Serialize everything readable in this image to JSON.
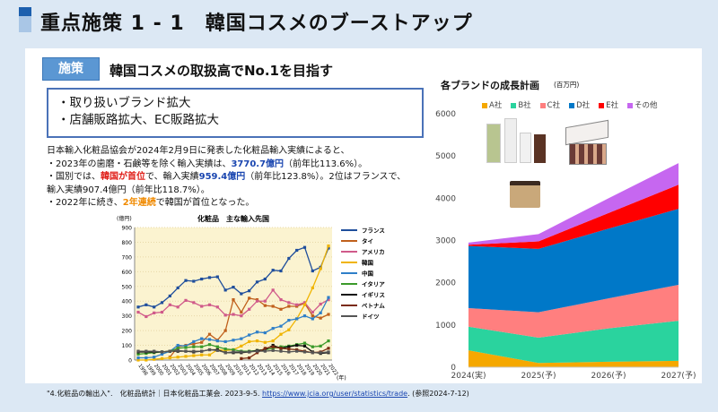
{
  "header": {
    "title": "重点施策 1 - 1　韓国コスメのブーストアップ"
  },
  "policy": {
    "badge": "施策",
    "headline": "韓国コスメの取扱高でNo.1を目指す",
    "bullets": [
      "・取り扱いブランド拡大",
      "・店舗販路拡大、EC販路拡大"
    ]
  },
  "paragraph": {
    "l1": "日本輸入化粧品協会が2024年2月9日に発表した化粧品輸入実績によると、",
    "l2a": "・2023年の歯磨・石鹸等を除く輸入実績は、",
    "l2b": "3770.7億円",
    "l2c": "（前年比113.6%）。",
    "l3a": "・国別では、",
    "l3b": "韓国が首位",
    "l3c": "で、輸入実績",
    "l3d": "959.4億円",
    "l3e": "（前年比123.8%）。2位はフランスで、",
    "l4": "輸入実績907.4億円（前年比118.7%）。",
    "l5a": "・2022年に続き、",
    "l5b": "2年連続",
    "l5c": "で韓国が首位となった。"
  },
  "footer": {
    "text": "\"4.化粧品の輸出入\".　化粧品統計｜日本化粧品工業会. 2023-9-5. ",
    "link": "https://www.jcia.org/user/statistics/trade",
    "after": ". (参照2024-7-12)"
  },
  "chart_data": [
    {
      "type": "line",
      "title": "化粧品　主な輸入先国",
      "ylabel": "(億円)",
      "xlabel": "(年)",
      "ylim": [
        0,
        900
      ],
      "yticks": [
        0,
        100,
        200,
        300,
        400,
        500,
        600,
        700,
        800,
        900
      ],
      "x": [
        "1998",
        "1999",
        "2000",
        "2001",
        "2002",
        "2003",
        "2004",
        "2005",
        "2006",
        "2007",
        "2008",
        "2009",
        "2010",
        "2011",
        "2012",
        "2013",
        "2014",
        "2015",
        "2016",
        "2017",
        "2018",
        "2019",
        "2020",
        "2021",
        "2022"
      ],
      "series": [
        {
          "name": "フランス",
          "color": "#1f4e9c",
          "values": [
            360,
            375,
            360,
            390,
            435,
            490,
            540,
            535,
            550,
            560,
            565,
            475,
            495,
            450,
            470,
            530,
            550,
            610,
            605,
            690,
            745,
            765,
            605,
            630,
            760
          ]
        },
        {
          "name": "タイ",
          "color": "#c0601c",
          "values": [
            null,
            null,
            null,
            null,
            20,
            90,
            100,
            110,
            120,
            175,
            135,
            200,
            410,
            325,
            420,
            410,
            370,
            365,
            345,
            365,
            365,
            385,
            300,
            285,
            310
          ]
        },
        {
          "name": "アメリカ",
          "color": "#d05a8a",
          "values": [
            325,
            295,
            320,
            325,
            375,
            360,
            405,
            390,
            365,
            375,
            360,
            305,
            310,
            300,
            345,
            400,
            400,
            475,
            410,
            390,
            375,
            390,
            325,
            380,
            410
          ]
        },
        {
          "name": "韓国",
          "color": "#f0b400",
          "values": [
            0,
            0,
            5,
            10,
            15,
            20,
            25,
            30,
            35,
            35,
            70,
            65,
            70,
            95,
            125,
            130,
            120,
            130,
            175,
            205,
            280,
            375,
            490,
            620,
            775
          ]
        },
        {
          "name": "中国",
          "color": "#2e7fc8",
          "values": [
            15,
            15,
            20,
            40,
            60,
            100,
            95,
            125,
            145,
            140,
            130,
            125,
            135,
            145,
            170,
            190,
            185,
            215,
            230,
            270,
            280,
            300,
            280,
            320,
            425
          ]
        },
        {
          "name": "イタリア",
          "color": "#3a9a2a",
          "values": [
            40,
            45,
            50,
            55,
            60,
            80,
            85,
            90,
            90,
            105,
            90,
            75,
            70,
            60,
            60,
            65,
            70,
            80,
            90,
            95,
            105,
            115,
            90,
            95,
            130
          ]
        },
        {
          "name": "イギリス",
          "color": "#111111",
          "values": [
            55,
            55,
            55,
            55,
            60,
            60,
            60,
            55,
            60,
            70,
            70,
            50,
            50,
            50,
            55,
            65,
            70,
            100,
            80,
            90,
            100,
            95,
            55,
            45,
            50
          ]
        },
        {
          "name": "ベトナム",
          "color": "#7a2a10",
          "values": [
            null,
            null,
            null,
            null,
            null,
            null,
            null,
            null,
            null,
            null,
            null,
            null,
            null,
            10,
            15,
            50,
            80,
            90,
            80,
            75,
            70,
            60,
            50,
            55,
            80
          ]
        },
        {
          "name": "ドイツ",
          "color": "#555555",
          "values": [
            60,
            60,
            60,
            55,
            60,
            65,
            60,
            60,
            60,
            70,
            65,
            50,
            55,
            55,
            55,
            60,
            60,
            65,
            60,
            55,
            60,
            55,
            50,
            50,
            55
          ]
        }
      ]
    },
    {
      "type": "area",
      "stacked": true,
      "title": "各ブランドの成長計画",
      "unit": "(百万円)",
      "ylim": [
        0,
        6000
      ],
      "yticks": [
        0,
        1000,
        2000,
        3000,
        4000,
        5000,
        6000
      ],
      "categories": [
        "2024(実)",
        "2025(予)",
        "2026(予)",
        "2027(予)"
      ],
      "series": [
        {
          "name": "A社",
          "color": "#f5a800",
          "values": [
            400,
            100,
            130,
            150
          ]
        },
        {
          "name": "B社",
          "color": "#2ad39e",
          "values": [
            560,
            600,
            790,
            950
          ]
        },
        {
          "name": "C社",
          "color": "#ff7f7f",
          "values": [
            440,
            600,
            710,
            850
          ]
        },
        {
          "name": "D社",
          "color": "#0078c8",
          "values": [
            1470,
            1500,
            1650,
            1800
          ]
        },
        {
          "name": "E社",
          "color": "#ff0000",
          "values": [
            30,
            180,
            370,
            570
          ]
        },
        {
          "name": "その他",
          "color": "#c667f0",
          "values": [
            50,
            170,
            350,
            510
          ]
        }
      ]
    }
  ]
}
